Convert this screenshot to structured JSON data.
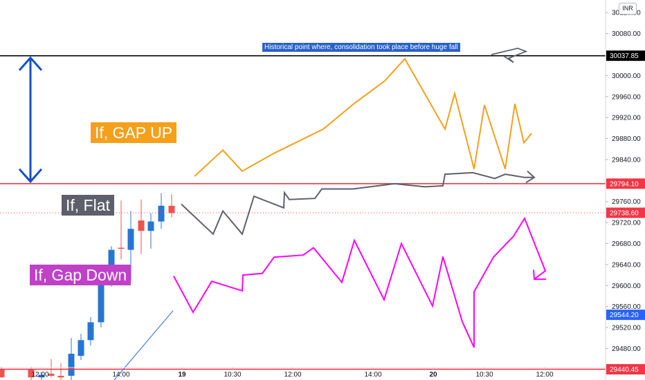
{
  "currency": "INR",
  "chart_data": {
    "type": "candlestick",
    "y_axis": {
      "side": "right",
      "ticks": [
        30120,
        30080,
        30000,
        29960,
        29920,
        29880,
        29840,
        29760,
        29720,
        29680,
        29640,
        29600,
        29560,
        29520,
        29480
      ],
      "ylim": [
        29420,
        30144
      ]
    },
    "x_axis": {
      "ticks": [
        {
          "label": "12:00",
          "bold": false
        },
        {
          "label": "14:00",
          "bold": false
        },
        {
          "label": "19",
          "bold": true
        },
        {
          "label": "10:30",
          "bold": false
        },
        {
          "label": "12:00",
          "bold": false
        },
        {
          "label": "14:00",
          "bold": false
        },
        {
          "label": "20",
          "bold": true
        },
        {
          "label": "10:30",
          "bold": false
        },
        {
          "label": "12:00",
          "bold": false
        }
      ]
    },
    "candles": [
      {
        "o": 29440,
        "h": 29445,
        "l": 29425,
        "c": 29425,
        "dir": "down"
      },
      {
        "o": 29440,
        "h": 29445,
        "l": 29420,
        "c": 29425,
        "dir": "down"
      },
      {
        "o": 29425,
        "h": 29435,
        "l": 29410,
        "c": 29430,
        "dir": "up"
      },
      {
        "o": 29432,
        "h": 29460,
        "l": 29425,
        "c": 29428,
        "dir": "down"
      },
      {
        "o": 29428,
        "h": 29452,
        "l": 29420,
        "c": 29425,
        "dir": "down"
      },
      {
        "o": 29428,
        "h": 29500,
        "l": 29420,
        "c": 29470,
        "dir": "up"
      },
      {
        "o": 29466,
        "h": 29508,
        "l": 29458,
        "c": 29496,
        "dir": "up"
      },
      {
        "o": 29496,
        "h": 29540,
        "l": 29486,
        "c": 29530,
        "dir": "up"
      },
      {
        "o": 29530,
        "h": 29620,
        "l": 29520,
        "c": 29612,
        "dir": "up"
      },
      {
        "o": 29608,
        "h": 29675,
        "l": 29598,
        "c": 29668,
        "dir": "up"
      },
      {
        "o": 29670,
        "h": 29762,
        "l": 29650,
        "c": 29672,
        "dir": "down"
      },
      {
        "o": 29668,
        "h": 29742,
        "l": 29610,
        "c": 29708,
        "dir": "up"
      },
      {
        "o": 29704,
        "h": 29764,
        "l": 29660,
        "c": 29724,
        "dir": "down"
      },
      {
        "o": 29704,
        "h": 29738,
        "l": 29670,
        "c": 29722,
        "dir": "up"
      },
      {
        "o": 29722,
        "h": 29776,
        "l": 29708,
        "c": 29752,
        "dir": "up"
      },
      {
        "o": 29752,
        "h": 29774,
        "l": 29730,
        "c": 29738,
        "dir": "down"
      }
    ],
    "horizontal_levels": [
      {
        "value": 29794.1,
        "label": "29794.10",
        "color": "#f23645"
      },
      {
        "value": 30037.85,
        "label": "30037.85",
        "color": "#000000"
      },
      {
        "value": 29440.45,
        "label": "29440.45",
        "color": "#f23645"
      }
    ],
    "current_price": {
      "value": 29738.6,
      "label": "29738.60",
      "color": "#f23645"
    },
    "crosshair_price": {
      "value": 29544.2,
      "label": "29544.20",
      "color": "#2962ff"
    },
    "scenarios": [
      {
        "label": "If, GAP UP",
        "color": "#f5a01a",
        "points": [
          [
            281,
            29808
          ],
          [
            322,
            29858
          ],
          [
            350,
            29818
          ],
          [
            396,
            29852
          ],
          [
            467,
            29898
          ],
          [
            510,
            29945
          ],
          [
            556,
            29990
          ],
          [
            585,
            30032
          ],
          [
            643,
            29898
          ],
          [
            657,
            29966
          ],
          [
            685,
            29822
          ],
          [
            700,
            29944
          ],
          [
            730,
            29822
          ],
          [
            744,
            29946
          ],
          [
            757,
            29872
          ],
          [
            768,
            29890
          ]
        ]
      },
      {
        "label": "If, Flat",
        "color": "#5d606b",
        "points": [
          [
            262,
            29755
          ],
          [
            308,
            29698
          ],
          [
            322,
            29742
          ],
          [
            350,
            29698
          ],
          [
            367,
            29770
          ],
          [
            410,
            29748
          ],
          [
            411,
            29777
          ],
          [
            418,
            29764
          ],
          [
            455,
            29766
          ],
          [
            465,
            29784
          ],
          [
            510,
            29784
          ],
          [
            570,
            29794
          ],
          [
            614,
            29788
          ],
          [
            640,
            29790
          ],
          [
            643,
            29812
          ],
          [
            683,
            29815
          ],
          [
            715,
            29804
          ],
          [
            730,
            29812
          ],
          [
            758,
            29806
          ],
          [
            772,
            29806
          ]
        ]
      },
      {
        "label": "If, Gap Down",
        "color": "#ff00ff",
        "points": [
          [
            251,
            29618
          ],
          [
            279,
            29549
          ],
          [
            306,
            29608
          ],
          [
            350,
            29590
          ],
          [
            351,
            29620
          ],
          [
            379,
            29623
          ],
          [
            396,
            29654
          ],
          [
            438,
            29658
          ],
          [
            453,
            29672
          ],
          [
            494,
            29606
          ],
          [
            512,
            29686
          ],
          [
            555,
            29573
          ],
          [
            580,
            29680
          ],
          [
            625,
            29561
          ],
          [
            640,
            29655
          ],
          [
            668,
            29531
          ],
          [
            685,
            29482
          ],
          [
            685,
            29588
          ],
          [
            713,
            29654
          ],
          [
            742,
            29694
          ],
          [
            758,
            29728
          ],
          [
            788,
            29628
          ],
          [
            772,
            29612
          ]
        ]
      }
    ],
    "projection_line": {
      "color": "#2962ff",
      "points": [
        [
          165,
          29420
        ],
        [
          250,
          29552
        ]
      ]
    },
    "range_arrow": {
      "color": "#1251c8",
      "from": 30037.85,
      "to": 29794.1
    },
    "annotation": {
      "text": "Historical point where, consolidation took place before huge fall",
      "color": "#2962c8"
    }
  }
}
